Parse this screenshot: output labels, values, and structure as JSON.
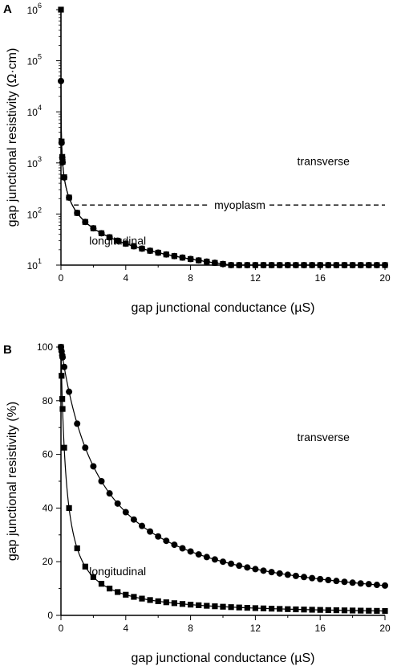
{
  "chart_data": [
    {
      "type": "line",
      "panel": "A",
      "xlabel": "gap junctional conductance (µS)",
      "ylabel": "gap junctional resistivity (Ω·cm)",
      "xlim": [
        0,
        20
      ],
      "ylim": [
        10,
        1000000
      ],
      "yscale": "log",
      "x_ticks": [
        "0",
        "4",
        "8",
        "12",
        "16",
        "20"
      ],
      "y_ticks": [
        {
          "base": "10",
          "exp": "1"
        },
        {
          "base": "10",
          "exp": "2"
        },
        {
          "base": "10",
          "exp": "3"
        },
        {
          "base": "10",
          "exp": "4"
        },
        {
          "base": "10",
          "exp": "5"
        },
        {
          "base": "10",
          "exp": "6"
        }
      ],
      "series": [
        {
          "name": "transverse",
          "marker": "square",
          "model": {
            "a": 1000000,
            "b": 9520,
            "c": 0,
            "d": 0.04,
            "e": 0.04,
            "step": 0.5
          }
        },
        {
          "name": "longitudinal",
          "marker": "circle",
          "model": {
            "a": 40000,
            "b": 380,
            "c": 0,
            "d": 0.04,
            "e": 0.04,
            "step": 0.5
          }
        }
      ],
      "reference_line": {
        "label": "myoplasm",
        "y": 150,
        "style": "dashed",
        "x_from": 0.8
      },
      "annotations": [
        {
          "text": "transverse",
          "x": 16.2,
          "y": 900
        },
        {
          "text": "longitudinal",
          "x": 3.5,
          "y": 25
        }
      ],
      "grid": false,
      "legend": "none"
    },
    {
      "type": "line",
      "panel": "B",
      "xlabel": "gap junctional conductance (µS)",
      "ylabel": "gap junctional resistivity (%)",
      "xlim": [
        0,
        20
      ],
      "ylim": [
        0,
        100
      ],
      "yscale": "linear",
      "x_ticks": [
        "0",
        "4",
        "8",
        "12",
        "16",
        "20"
      ],
      "y_ticks": [
        "0",
        "20",
        "40",
        "60",
        "80",
        "100"
      ],
      "series": [
        {
          "name": "transverse",
          "marker": "square",
          "model": {
            "a": 100,
            "b": 3.0,
            "c": 0,
            "d": 0.04,
            "e": 0.04,
            "step": 0.5
          }
        },
        {
          "name": "longitudinal",
          "marker": "circle",
          "model": {
            "a": 100,
            "b": 0.4,
            "c": 0,
            "d": 0.04,
            "e": 0.04,
            "step": 0.5
          }
        }
      ],
      "annotations": [
        {
          "text": "transverse",
          "x": 16.2,
          "y": 65
        },
        {
          "text": "longitudinal",
          "x": 3.5,
          "y": 15
        }
      ],
      "grid": false,
      "legend": "none"
    }
  ]
}
